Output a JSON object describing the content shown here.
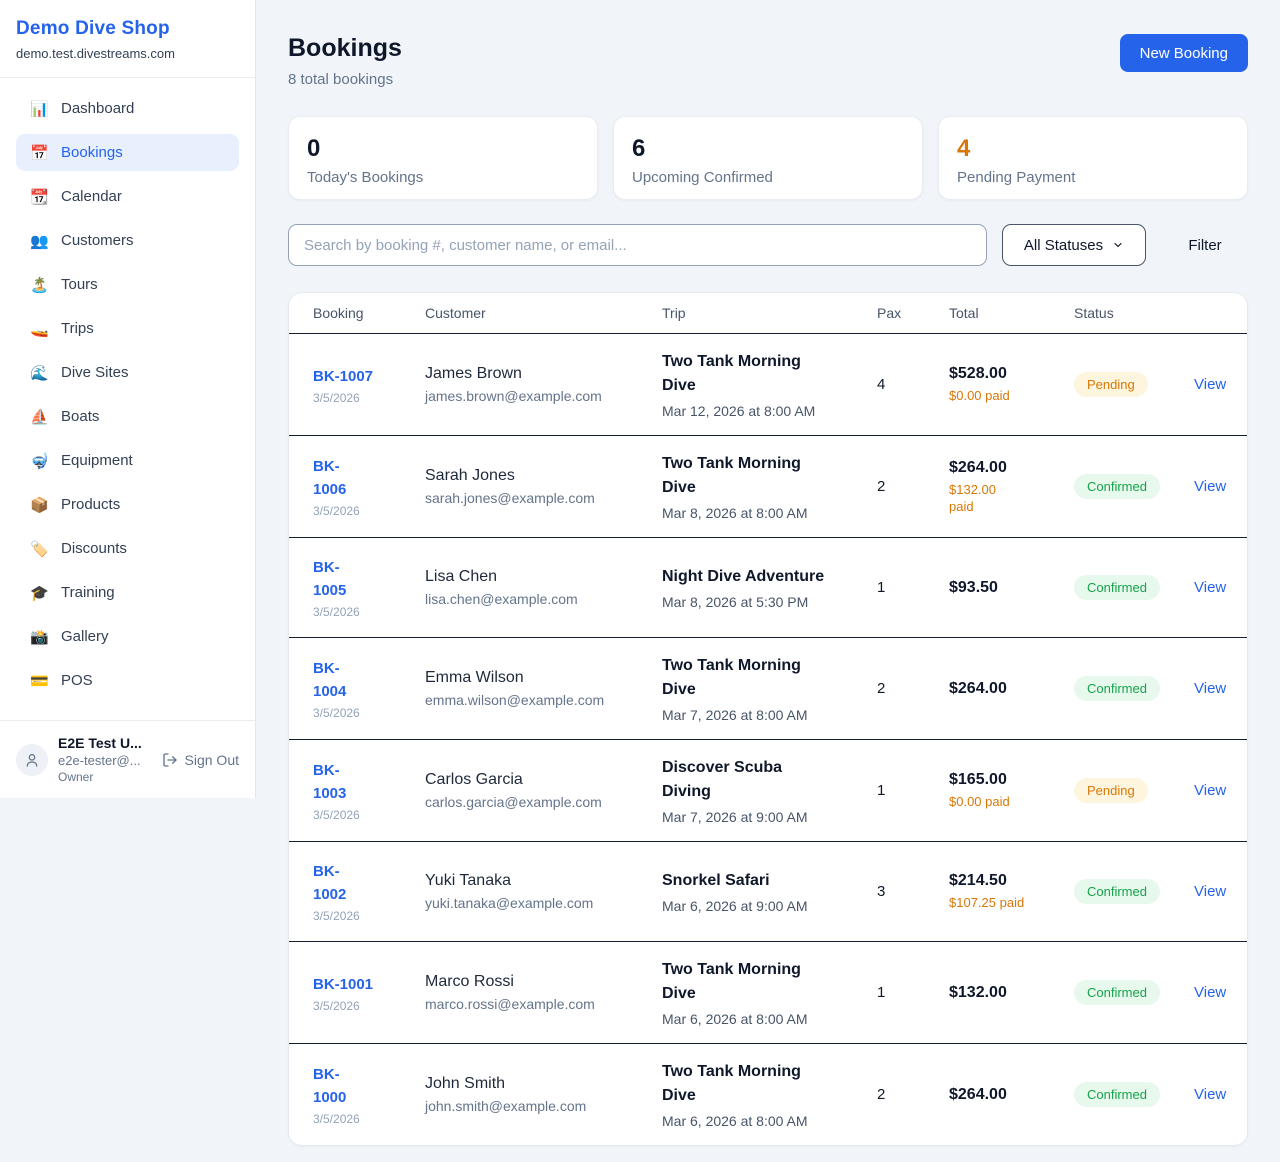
{
  "colors": {
    "accent": "#2563eb",
    "pending": "#d97706",
    "confirmed": "#16a34a"
  },
  "sidebar": {
    "brand": {
      "name": "Demo Dive Shop",
      "domain": "demo.test.divestreams.com"
    },
    "items": [
      {
        "label": "Dashboard",
        "icon": "📊",
        "active": false
      },
      {
        "label": "Bookings",
        "icon": "📅",
        "active": true
      },
      {
        "label": "Calendar",
        "icon": "📆",
        "active": false
      },
      {
        "label": "Customers",
        "icon": "👥",
        "active": false
      },
      {
        "label": "Tours",
        "icon": "🏝️",
        "active": false
      },
      {
        "label": "Trips",
        "icon": "🚤",
        "active": false
      },
      {
        "label": "Dive Sites",
        "icon": "🌊",
        "active": false
      },
      {
        "label": "Boats",
        "icon": "⛵",
        "active": false
      },
      {
        "label": "Equipment",
        "icon": "🤿",
        "active": false
      },
      {
        "label": "Products",
        "icon": "📦",
        "active": false
      },
      {
        "label": "Discounts",
        "icon": "🏷️",
        "active": false
      },
      {
        "label": "Training",
        "icon": "🎓",
        "active": false
      },
      {
        "label": "Gallery",
        "icon": "📸",
        "active": false
      },
      {
        "label": "POS",
        "icon": "💳",
        "active": false
      }
    ],
    "user": {
      "name": "E2E Test U...",
      "email": "e2e-tester@...",
      "role": "Owner",
      "sign_out_label": "Sign Out"
    }
  },
  "header": {
    "title": "Bookings",
    "subtitle": "8 total bookings",
    "new_booking_label": "New Booking"
  },
  "stats": [
    {
      "value": "0",
      "label": "Today's Bookings",
      "color": "#0f172a"
    },
    {
      "value": "6",
      "label": "Upcoming Confirmed",
      "color": "#0f172a"
    },
    {
      "value": "4",
      "label": "Pending Payment",
      "color": "#d97706"
    }
  ],
  "filters": {
    "search_placeholder": "Search by booking #, customer name, or email...",
    "status_select": "All Statuses",
    "filter_label": "Filter"
  },
  "table": {
    "columns": [
      "Booking",
      "Customer",
      "Trip",
      "Pax",
      "Total",
      "Status"
    ],
    "view_label": "View",
    "rows": [
      {
        "number": "BK-1007",
        "date": "3/5/2026",
        "customer_name": "James Brown",
        "customer_email": "james.brown@example.com",
        "trip_name": "Two Tank Morning\nDive",
        "trip_datetime": "Mar 12, 2026 at 8:00 AM",
        "pax": "4",
        "total": "$528.00",
        "paid": "$0.00 paid",
        "status": "Pending",
        "status_type": "pending"
      },
      {
        "number": "BK-\n1006",
        "date": "3/5/2026",
        "customer_name": "Sarah Jones",
        "customer_email": "sarah.jones@example.com",
        "trip_name": "Two Tank Morning\nDive",
        "trip_datetime": "Mar 8, 2026 at 8:00 AM",
        "pax": "2",
        "total": "$264.00",
        "paid": "$132.00\npaid",
        "status": "Confirmed",
        "status_type": "confirmed"
      },
      {
        "number": "BK-\n1005",
        "date": "3/5/2026",
        "customer_name": "Lisa Chen",
        "customer_email": "lisa.chen@example.com",
        "trip_name": "Night Dive Adventure",
        "trip_datetime": "Mar 8, 2026 at 5:30 PM",
        "pax": "1",
        "total": "$93.50",
        "paid": null,
        "status": "Confirmed",
        "status_type": "confirmed"
      },
      {
        "number": "BK-\n1004",
        "date": "3/5/2026",
        "customer_name": "Emma Wilson",
        "customer_email": "emma.wilson@example.com",
        "trip_name": "Two Tank Morning\nDive",
        "trip_datetime": "Mar 7, 2026 at 8:00 AM",
        "pax": "2",
        "total": "$264.00",
        "paid": null,
        "status": "Confirmed",
        "status_type": "confirmed"
      },
      {
        "number": "BK-\n1003",
        "date": "3/5/2026",
        "customer_name": "Carlos Garcia",
        "customer_email": "carlos.garcia@example.com",
        "trip_name": "Discover Scuba\nDiving",
        "trip_datetime": "Mar 7, 2026 at 9:00 AM",
        "pax": "1",
        "total": "$165.00",
        "paid": "$0.00 paid",
        "status": "Pending",
        "status_type": "pending"
      },
      {
        "number": "BK-\n1002",
        "date": "3/5/2026",
        "customer_name": "Yuki Tanaka",
        "customer_email": "yuki.tanaka@example.com",
        "trip_name": "Snorkel Safari",
        "trip_datetime": "Mar 6, 2026 at 9:00 AM",
        "pax": "3",
        "total": "$214.50",
        "paid": "$107.25 paid",
        "status": "Confirmed",
        "status_type": "confirmed"
      },
      {
        "number": "BK-1001",
        "date": "3/5/2026",
        "customer_name": "Marco Rossi",
        "customer_email": "marco.rossi@example.com",
        "trip_name": "Two Tank Morning\nDive",
        "trip_datetime": "Mar 6, 2026 at 8:00 AM",
        "pax": "1",
        "total": "$132.00",
        "paid": null,
        "status": "Confirmed",
        "status_type": "confirmed"
      },
      {
        "number": "BK-\n1000",
        "date": "3/5/2026",
        "customer_name": "John Smith",
        "customer_email": "john.smith@example.com",
        "trip_name": "Two Tank Morning\nDive",
        "trip_datetime": "Mar 6, 2026 at 8:00 AM",
        "pax": "2",
        "total": "$264.00",
        "paid": null,
        "status": "Confirmed",
        "status_type": "confirmed"
      }
    ]
  }
}
